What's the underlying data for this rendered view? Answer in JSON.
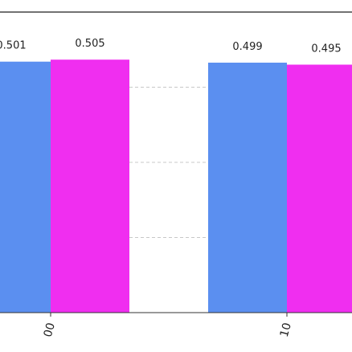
{
  "chart_data": {
    "type": "bar",
    "categories": [
      "00",
      "10"
    ],
    "series": [
      {
        "values": [
          0.501,
          0.499
        ],
        "color": "#5b8ff0"
      },
      {
        "values": [
          0.505,
          0.495
        ],
        "color": "#f02ef0"
      }
    ],
    "data_labels": [
      [
        "0.501",
        "0.499"
      ],
      [
        "0.505",
        "0.495"
      ]
    ],
    "ylim": [
      0,
      0.6
    ],
    "gridlines": [
      0.15,
      0.3,
      0.45
    ],
    "grid": true,
    "tick_label_rotation": "vertical"
  }
}
